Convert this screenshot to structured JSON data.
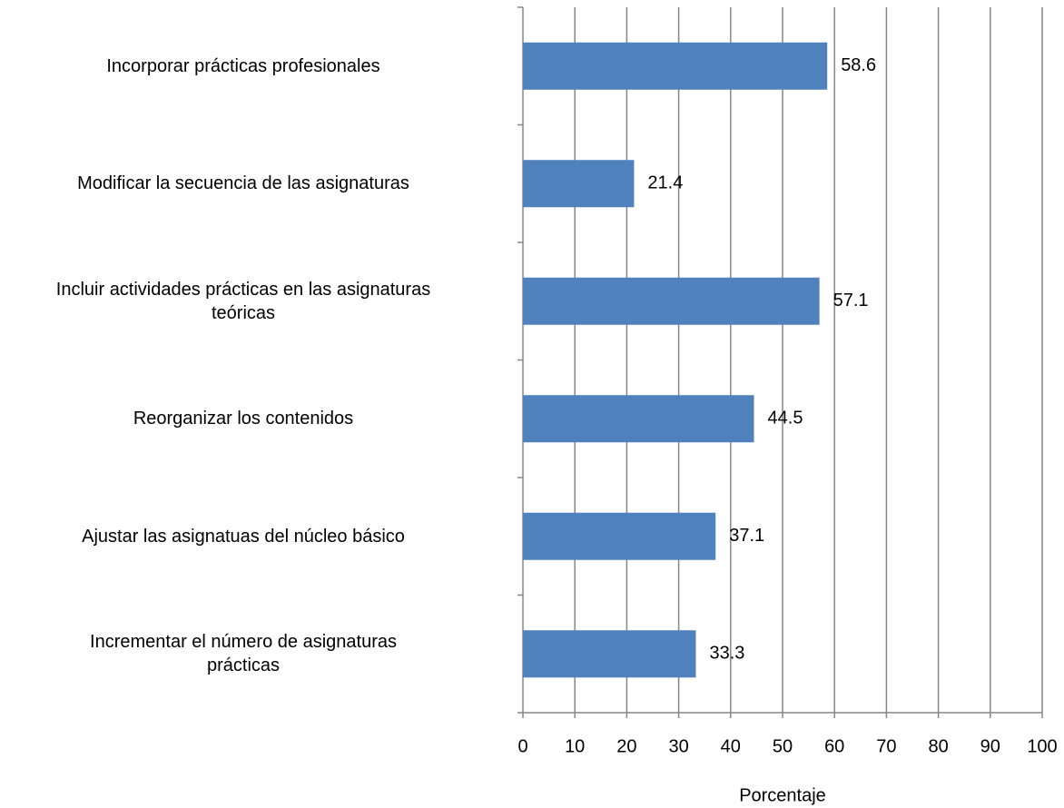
{
  "chart_data": {
    "type": "bar",
    "orientation": "horizontal",
    "categories": [
      "Incorporar prácticas profesionales",
      "Modificar la secuencia de las asignaturas",
      "Incluir actividades prácticas en las asignaturas\nteóricas",
      "Reorganizar los contenidos",
      "Ajustar las asignatuas  del núcleo básico",
      "Incrementar el número de asignaturas\nprácticas"
    ],
    "values": [
      58.6,
      21.4,
      57.1,
      44.5,
      37.1,
      33.3
    ],
    "color": "#4f81bd",
    "x_label": "Porcentaje",
    "xlim": [
      0,
      100
    ],
    "xticks": [
      0,
      10,
      20,
      30,
      40,
      50,
      60,
      70,
      80,
      90,
      100
    ],
    "grid": true
  }
}
